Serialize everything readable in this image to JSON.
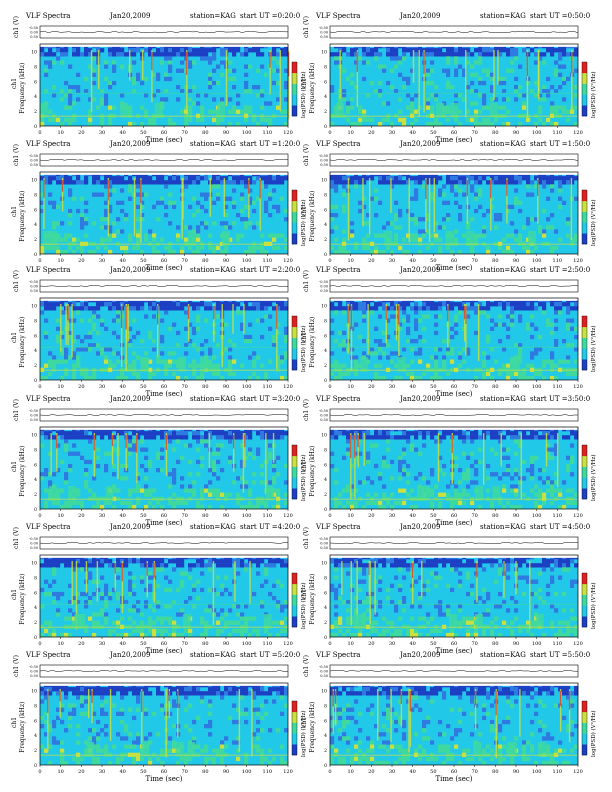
{
  "header": {
    "title": "VLF Spectra",
    "date": "Jan20,2009",
    "station": "station=KAG",
    "start_prefix": "start  UT ="
  },
  "axes": {
    "xlabel": "Time (sec)",
    "ylabel_freq": "Frequency (kHz)",
    "ylabel_ch": "ch1 (V)",
    "colorbar_label": "log(PSD) (V²/Hz)",
    "x_ticks": [
      "0",
      "10",
      "20",
      "30",
      "40",
      "50",
      "60",
      "70",
      "80",
      "90",
      "100",
      "110",
      "120"
    ],
    "freq_ticks": [
      "0",
      "2",
      "4",
      "6",
      "8",
      "10"
    ],
    "ch_ticks": [
      "-0.50",
      "0.00",
      "0.50"
    ]
  },
  "colors": {
    "background": "#22c8e8",
    "low": "#1d3fc4",
    "mid": "#3fd9a0",
    "high": "#c8e040",
    "peak": "#e02020"
  },
  "chart_data": [
    {
      "type": "heatmap",
      "panel": "row1-left",
      "start_ut": "0:20:0",
      "xlim": [
        0,
        120
      ],
      "ylim_khz": [
        0,
        11
      ]
    },
    {
      "type": "heatmap",
      "panel": "row1-right",
      "start_ut": "0:50:0",
      "xlim": [
        0,
        120
      ],
      "ylim_khz": [
        0,
        11
      ]
    },
    {
      "type": "heatmap",
      "panel": "row2-left",
      "start_ut": "1:20:0",
      "xlim": [
        0,
        120
      ],
      "ylim_khz": [
        0,
        11
      ]
    },
    {
      "type": "heatmap",
      "panel": "row2-right",
      "start_ut": "1:50:0",
      "xlim": [
        0,
        120
      ],
      "ylim_khz": [
        0,
        11
      ]
    },
    {
      "type": "heatmap",
      "panel": "row3-left",
      "start_ut": "2:20:0",
      "xlim": [
        0,
        120
      ],
      "ylim_khz": [
        0,
        11
      ]
    },
    {
      "type": "heatmap",
      "panel": "row3-right",
      "start_ut": "2:50:0",
      "xlim": [
        0,
        120
      ],
      "ylim_khz": [
        0,
        11
      ]
    },
    {
      "type": "heatmap",
      "panel": "row4-left",
      "start_ut": "3:20:0",
      "xlim": [
        0,
        120
      ],
      "ylim_khz": [
        0,
        11
      ]
    },
    {
      "type": "heatmap",
      "panel": "row4-right",
      "start_ut": "3:50:0",
      "xlim": [
        0,
        120
      ],
      "ylim_khz": [
        0,
        11
      ]
    },
    {
      "type": "heatmap",
      "panel": "row5-left",
      "start_ut": "4:20:0",
      "xlim": [
        0,
        120
      ],
      "ylim_khz": [
        0,
        11
      ]
    },
    {
      "type": "heatmap",
      "panel": "row5-right",
      "start_ut": "4:50:0",
      "xlim": [
        0,
        120
      ],
      "ylim_khz": [
        0,
        11
      ]
    },
    {
      "type": "heatmap",
      "panel": "row6-left",
      "start_ut": "5:20:0",
      "xlim": [
        0,
        120
      ],
      "ylim_khz": [
        0,
        11
      ]
    },
    {
      "type": "heatmap",
      "panel": "row6-right",
      "start_ut": "5:50:0",
      "xlim": [
        0,
        120
      ],
      "ylim_khz": [
        0,
        11
      ]
    }
  ]
}
